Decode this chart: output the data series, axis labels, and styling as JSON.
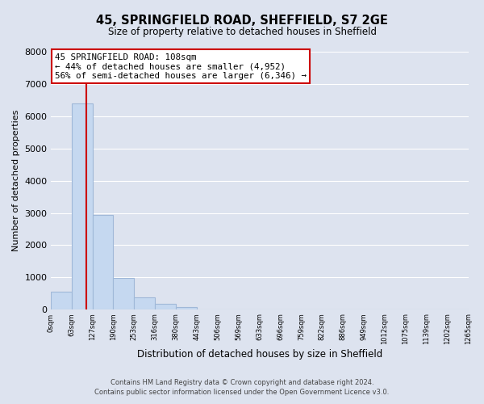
{
  "title": "45, SPRINGFIELD ROAD, SHEFFIELD, S7 2GE",
  "subtitle": "Size of property relative to detached houses in Sheffield",
  "xlabel": "Distribution of detached houses by size in Sheffield",
  "ylabel": "Number of detached properties",
  "bar_values": [
    560,
    6400,
    2950,
    990,
    380,
    180,
    80,
    0,
    0,
    0,
    0,
    0,
    0,
    0,
    0,
    0,
    0,
    0,
    0,
    0
  ],
  "bin_labels": [
    "0sqm",
    "63sqm",
    "127sqm",
    "190sqm",
    "253sqm",
    "316sqm",
    "380sqm",
    "443sqm",
    "506sqm",
    "569sqm",
    "633sqm",
    "696sqm",
    "759sqm",
    "822sqm",
    "886sqm",
    "949sqm",
    "1012sqm",
    "1075sqm",
    "1139sqm",
    "1202sqm",
    "1265sqm"
  ],
  "bar_color": "#c5d8f0",
  "bar_edge_color": "#a0b8d8",
  "property_line_x": 108,
  "bin_width": 63,
  "ylim": [
    0,
    8000
  ],
  "yticks": [
    0,
    1000,
    2000,
    3000,
    4000,
    5000,
    6000,
    7000,
    8000
  ],
  "annotation_line1": "45 SPRINGFIELD ROAD: 108sqm",
  "annotation_line2": "← 44% of detached houses are smaller (4,952)",
  "annotation_line3": "56% of semi-detached houses are larger (6,346) →",
  "footnote1": "Contains HM Land Registry data © Crown copyright and database right 2024.",
  "footnote2": "Contains public sector information licensed under the Open Government Licence v3.0.",
  "background_color": "#dde3ef",
  "plot_bg_color": "#dde3ef",
  "grid_color": "#ffffff",
  "red_line_color": "#cc0000",
  "ann_box_edge_color": "#cc0000",
  "ann_box_face_color": "#ffffff"
}
